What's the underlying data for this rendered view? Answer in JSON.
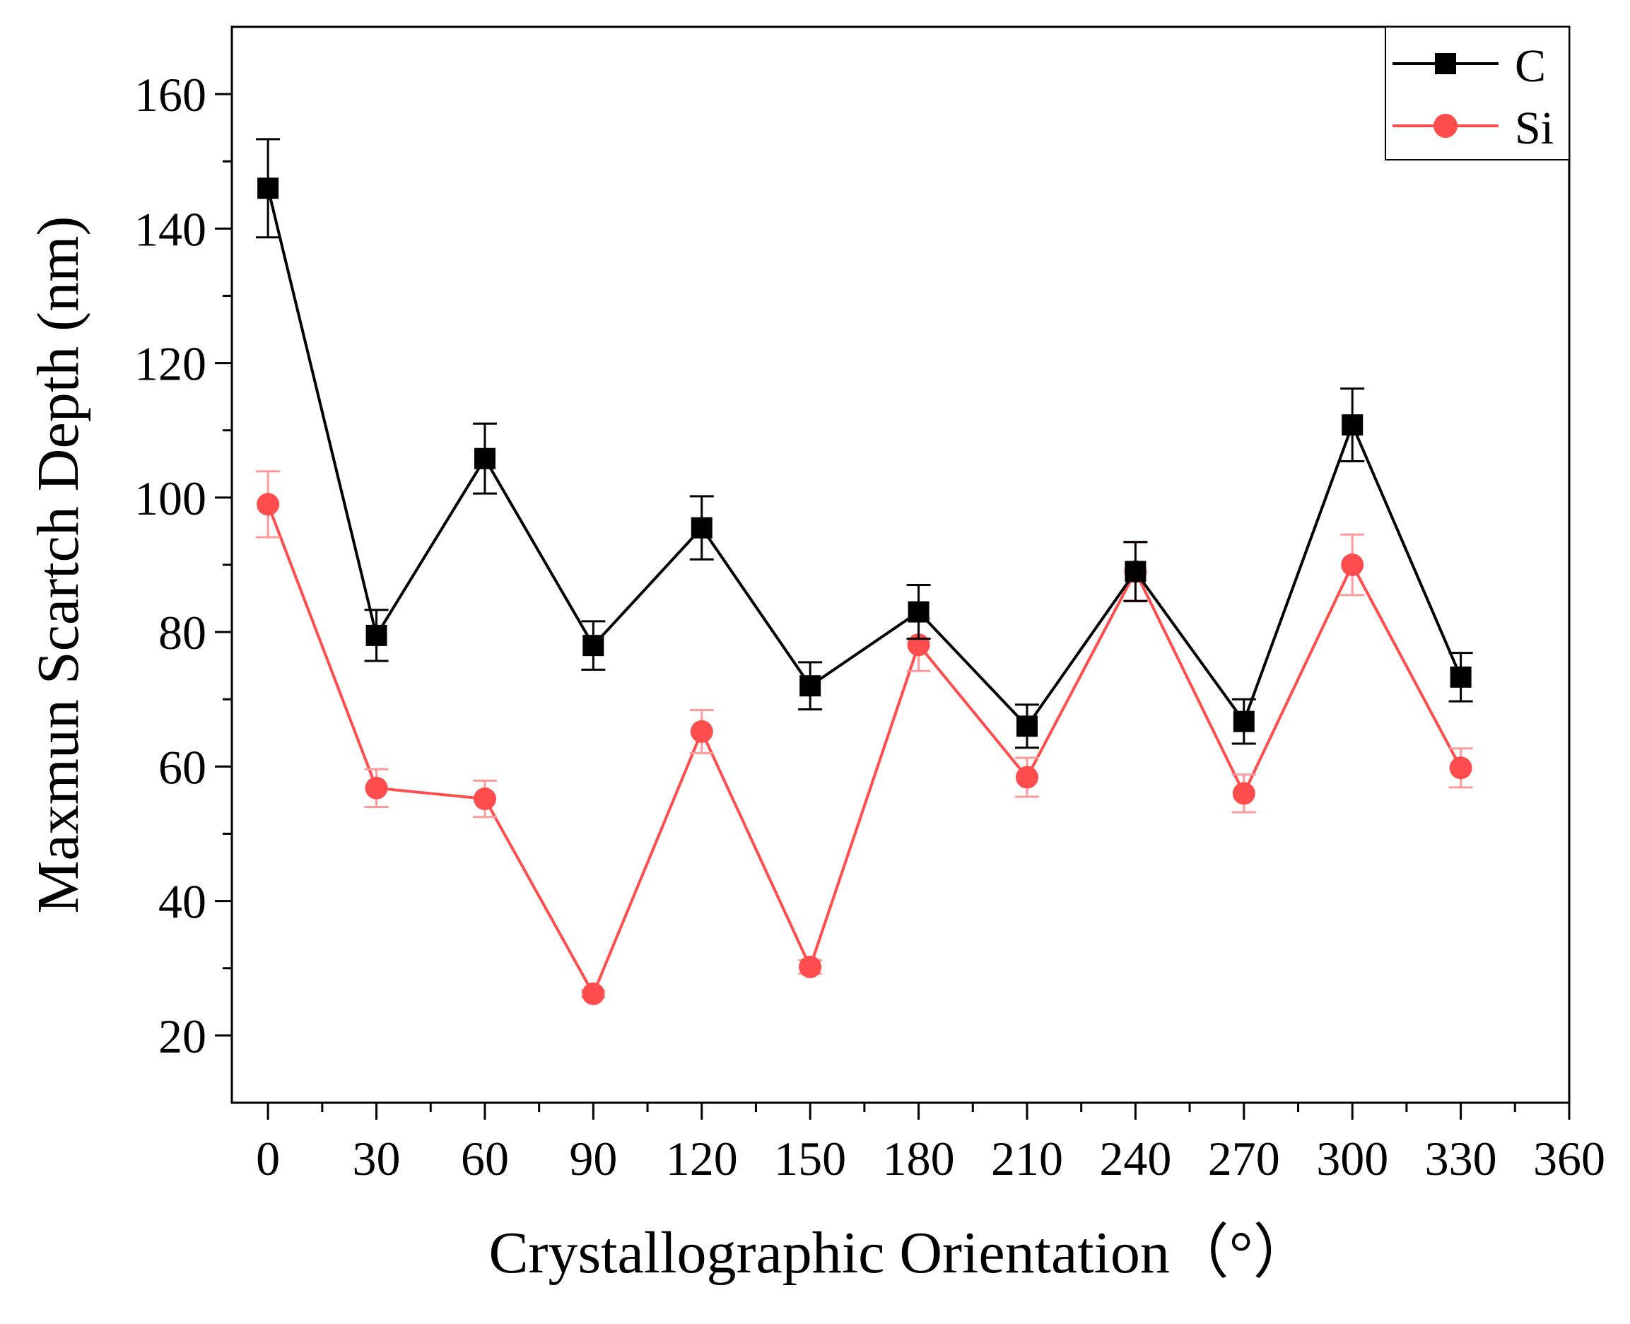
{
  "chart_data": {
    "type": "line",
    "title": "",
    "xlabel": "Crystallographic Orientation（°）",
    "ylabel": "Maxmun Scartch Depth (nm)",
    "xlim": [
      -10,
      360
    ],
    "ylim": [
      10,
      170
    ],
    "x_ticks": [
      0,
      30,
      60,
      90,
      120,
      150,
      180,
      210,
      240,
      270,
      300,
      330,
      360
    ],
    "x_tick_labels": [
      "0",
      "30",
      "60",
      "90",
      "120",
      "150",
      "180",
      "210",
      "240",
      "270",
      "300",
      "330",
      "360"
    ],
    "y_ticks": [
      20,
      40,
      60,
      80,
      100,
      120,
      140,
      160
    ],
    "y_tick_labels": [
      "20",
      "40",
      "60",
      "80",
      "100",
      "120",
      "140",
      "160"
    ],
    "x_minor_ticks": [
      15,
      45,
      75,
      105,
      135,
      165,
      195,
      225,
      255,
      285,
      315,
      345
    ],
    "y_minor_ticks": [
      30,
      50,
      70,
      90,
      110,
      130,
      150
    ],
    "legend_position": "top-right",
    "grid": false,
    "x": [
      0,
      30,
      60,
      90,
      120,
      150,
      180,
      210,
      240,
      270,
      300,
      330
    ],
    "series": [
      {
        "name": "C",
        "color": "#000000",
        "marker": "square",
        "values": [
          146,
          79.5,
          105.8,
          78,
          95.5,
          72,
          83,
          66,
          89,
          66.7,
          110.8,
          73.3
        ],
        "errors": [
          7.3,
          3.8,
          5.2,
          3.6,
          4.7,
          3.5,
          4.0,
          3.2,
          4.4,
          3.3,
          5.4,
          3.6
        ]
      },
      {
        "name": "Si",
        "color": "#ff4d4d",
        "marker": "circle",
        "values": [
          99,
          56.8,
          55.2,
          26.2,
          65.2,
          30.2,
          78.1,
          58.4,
          89,
          56,
          90,
          59.8
        ],
        "errors": [
          4.9,
          2.8,
          2.7,
          0.5,
          3.2,
          1.0,
          3.9,
          2.9,
          4.3,
          2.8,
          4.5,
          2.9
        ]
      }
    ]
  }
}
